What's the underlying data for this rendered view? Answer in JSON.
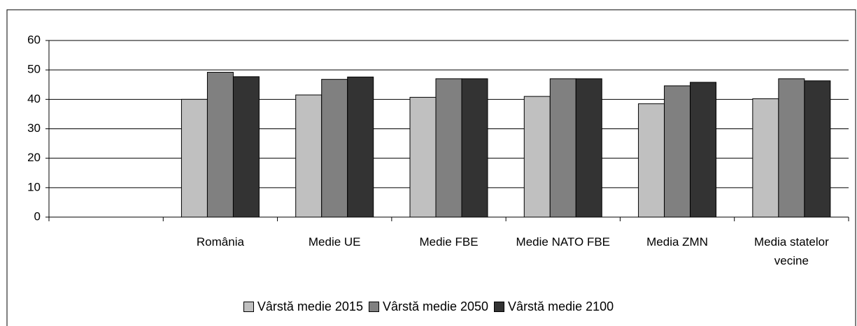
{
  "chart_data": {
    "type": "bar",
    "categories": [
      null,
      "România",
      "Medie UE",
      "Medie FBE",
      "Medie NATO FBE",
      "Media ZMN",
      "Media statelor vecine"
    ],
    "series": [
      {
        "name": "Vârstă medie 2015",
        "color": "#c0c0c0",
        "values": [
          null,
          40,
          41.5,
          40.7,
          41,
          38.5,
          40.2
        ]
      },
      {
        "name": "Vârstă medie 2050",
        "color": "#808080",
        "values": [
          null,
          49.2,
          46.8,
          47,
          47,
          44.6,
          47
        ]
      },
      {
        "name": "Vârstă medie 2100",
        "color": "#333333",
        "values": [
          null,
          47.7,
          47.6,
          47,
          47,
          45.8,
          46.3
        ]
      }
    ],
    "ylim": [
      0,
      60
    ],
    "yticks": [
      0,
      10,
      20,
      30,
      40,
      50,
      60
    ],
    "grid": true
  }
}
